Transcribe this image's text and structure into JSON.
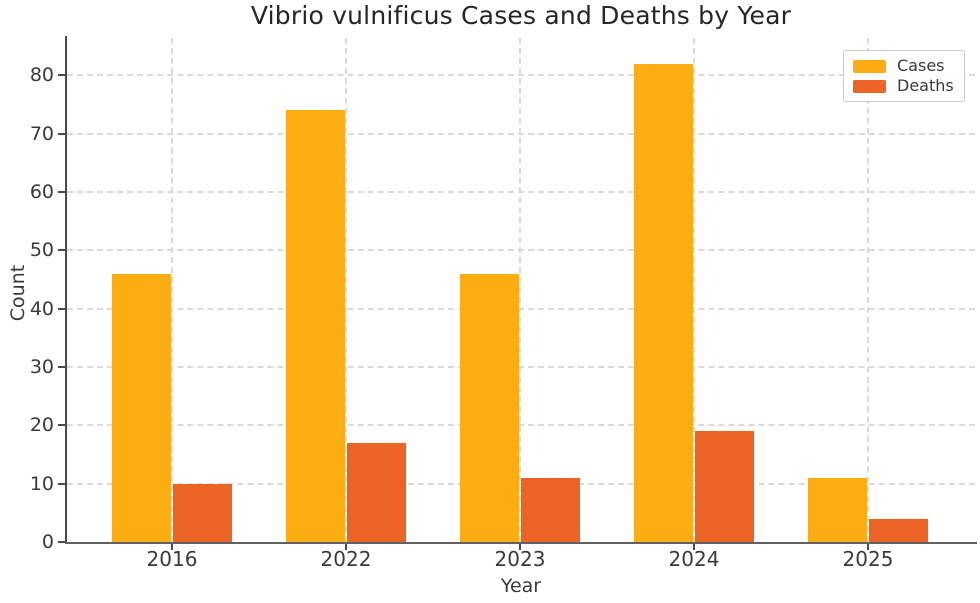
{
  "figure": {
    "title": "Vibrio vulnificus Cases and Deaths by Year",
    "xlabel": "Year",
    "ylabel": "Count"
  },
  "legend": {
    "position": "upper right",
    "items": [
      {
        "label": "Cases",
        "color": "#FBAD11"
      },
      {
        "label": "Deaths",
        "color": "#EC6425"
      }
    ]
  },
  "chart_data": {
    "type": "bar",
    "title": "Vibrio vulnificus Cases and Deaths by Year",
    "xlabel": "Year",
    "ylabel": "Count",
    "categories": [
      "2016",
      "2022",
      "2023",
      "2024",
      "2025"
    ],
    "series": [
      {
        "name": "Cases",
        "color": "#FBAD11",
        "values": [
          46,
          74,
          46,
          82,
          11
        ]
      },
      {
        "name": "Deaths",
        "color": "#EC6425",
        "values": [
          10,
          17,
          11,
          19,
          4
        ]
      }
    ],
    "yticks": [
      0,
      10,
      20,
      30,
      40,
      50,
      60,
      70,
      80
    ],
    "ylim": [
      0,
      86.4
    ],
    "grid": true,
    "grid_style": "dashed",
    "legend_position": "upper right",
    "background": "#ffffff"
  }
}
